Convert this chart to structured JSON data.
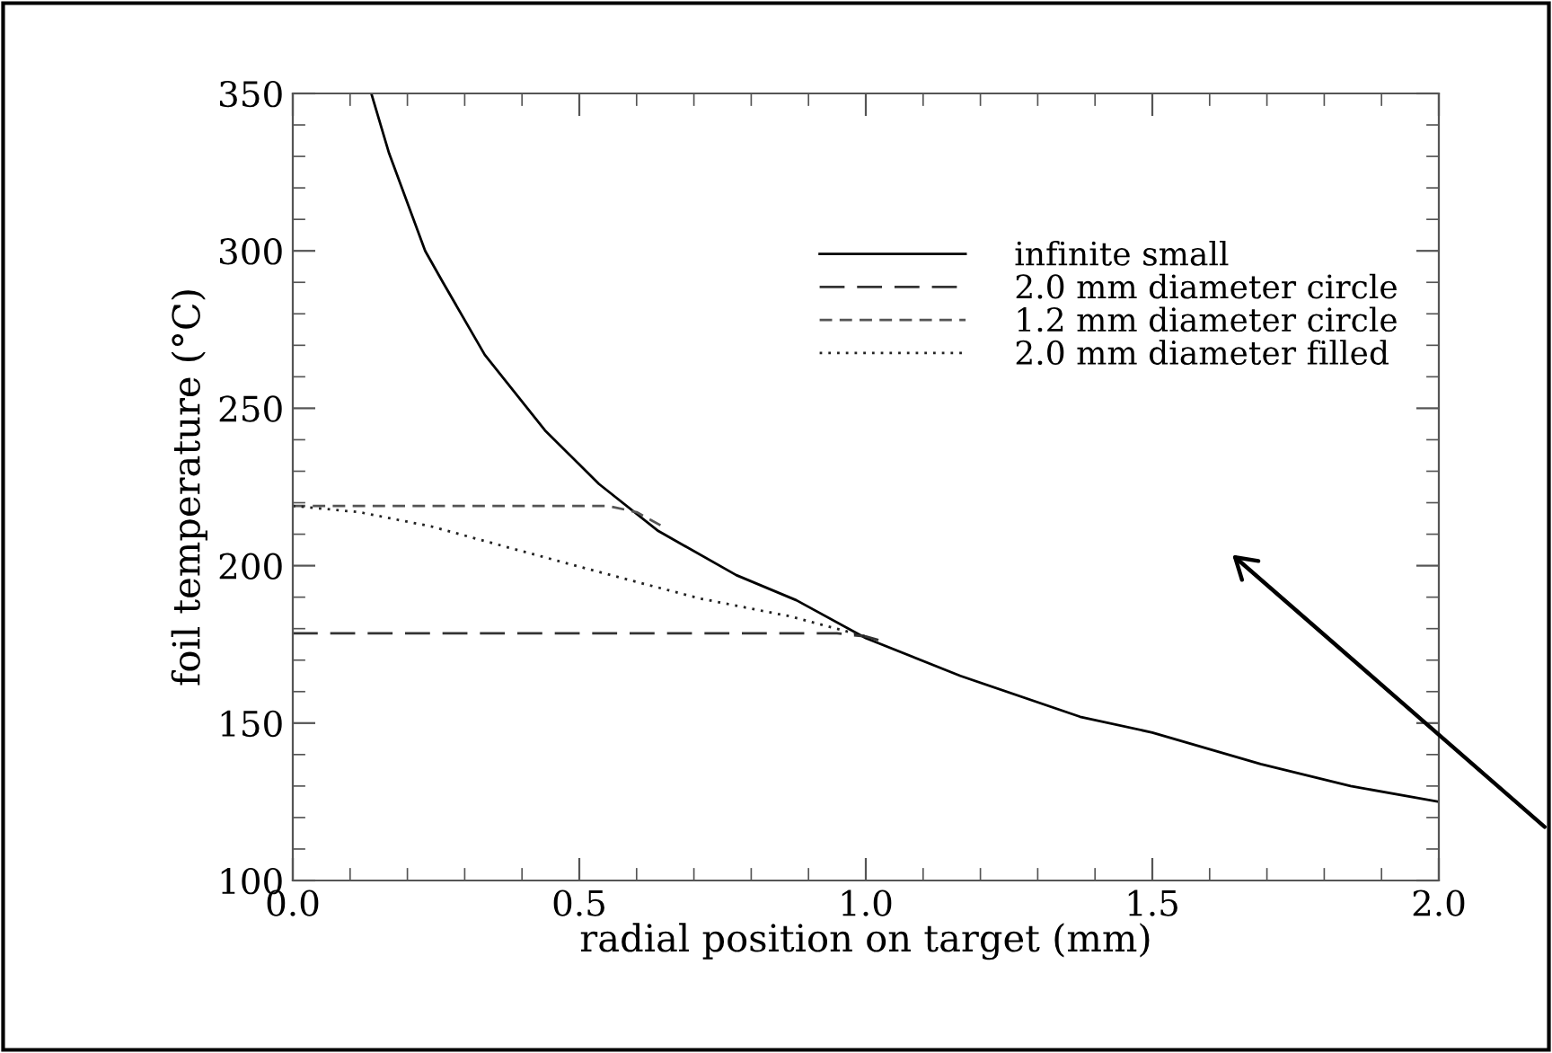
{
  "chart_data": {
    "type": "line",
    "xlabel": "radial position on target (mm)",
    "ylabel": "foil temperature (°C)",
    "xlim": [
      0,
      2
    ],
    "ylim": [
      100,
      350
    ],
    "xticks": [
      {
        "value": 0,
        "label": "0.0"
      },
      0.5,
      {
        "value": 1,
        "label": "1.0"
      },
      1.5,
      {
        "value": 2,
        "label": "2.0"
      }
    ],
    "yticks": [
      100,
      150,
      200,
      250,
      300,
      350
    ],
    "grid": false,
    "legend": "top right",
    "marker": "none",
    "series": [
      {
        "name": "infinite small",
        "color": "#000000",
        "line_style": "solid",
        "x": [
          0.137,
          0.168,
          0.231,
          0.262,
          0.335,
          0.44,
          0.534,
          0.638,
          0.774,
          0.879,
          1.0,
          1.165,
          1.374,
          1.5,
          1.689,
          1.846,
          2.0
        ],
        "values": [
          350,
          331,
          300,
          290,
          267,
          243,
          226,
          211,
          197,
          189,
          177,
          165,
          152,
          147,
          137,
          130,
          125
        ]
      },
      {
        "name": "2.0 mm diameter circle",
        "color": "#333333",
        "line_style": "longdash",
        "x": [
          0,
          0.95,
          1.0,
          1.03
        ],
        "values": [
          178.5,
          178.5,
          177.5,
          176
        ]
      },
      {
        "name": "1.2 mm diameter circle",
        "color": "#555555",
        "line_style": "dashed",
        "x": [
          0,
          0.55,
          0.6,
          0.65
        ],
        "values": [
          219,
          219,
          217,
          212
        ]
      },
      {
        "name": "2.0 mm diameter filled",
        "color": "#222222",
        "line_style": "dotted",
        "x": [
          0,
          0.116,
          0.241,
          0.398,
          0.555,
          0.71,
          0.868,
          1.0
        ],
        "values": [
          219,
          217,
          212.5,
          204.7,
          197,
          189.6,
          183.9,
          177.5
        ]
      }
    ]
  }
}
